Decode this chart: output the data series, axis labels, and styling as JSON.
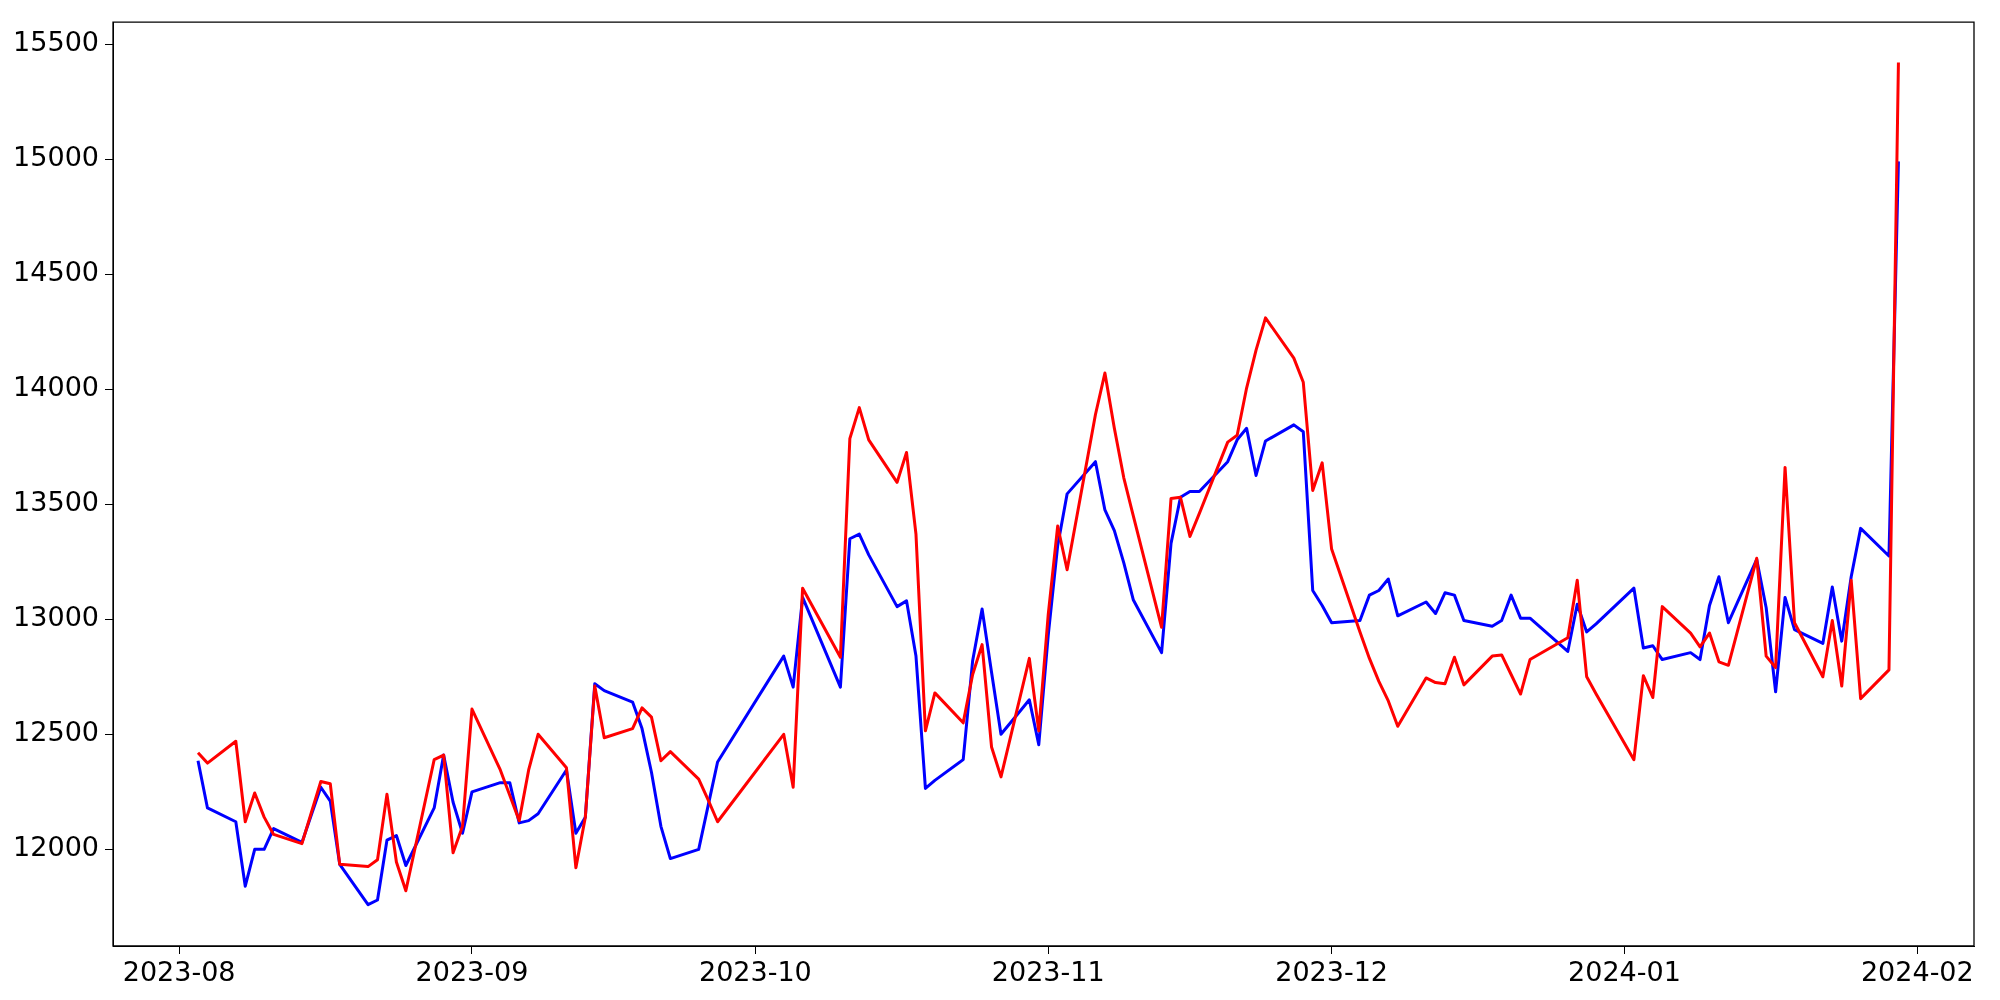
{
  "chart_data": {
    "type": "line",
    "x": [
      "2023-08-03",
      "2023-08-04",
      "2023-08-07",
      "2023-08-08",
      "2023-08-09",
      "2023-08-10",
      "2023-08-11",
      "2023-08-14",
      "2023-08-15",
      "2023-08-16",
      "2023-08-17",
      "2023-08-18",
      "2023-08-21",
      "2023-08-22",
      "2023-08-23",
      "2023-08-24",
      "2023-08-25",
      "2023-08-28",
      "2023-08-29",
      "2023-08-30",
      "2023-08-31",
      "2023-09-01",
      "2023-09-04",
      "2023-09-05",
      "2023-09-06",
      "2023-09-07",
      "2023-09-08",
      "2023-09-11",
      "2023-09-12",
      "2023-09-13",
      "2023-09-14",
      "2023-09-15",
      "2023-09-18",
      "2023-09-19",
      "2023-09-20",
      "2023-09-21",
      "2023-09-22",
      "2023-09-25",
      "2023-09-26",
      "2023-09-27",
      "2023-10-04",
      "2023-10-05",
      "2023-10-06",
      "2023-10-10",
      "2023-10-11",
      "2023-10-12",
      "2023-10-13",
      "2023-10-16",
      "2023-10-17",
      "2023-10-18",
      "2023-10-19",
      "2023-10-20",
      "2023-10-23",
      "2023-10-24",
      "2023-10-25",
      "2023-10-26",
      "2023-10-27",
      "2023-10-30",
      "2023-10-31",
      "2023-11-01",
      "2023-11-02",
      "2023-11-03",
      "2023-11-06",
      "2023-11-07",
      "2023-11-08",
      "2023-11-09",
      "2023-11-10",
      "2023-11-13",
      "2023-11-14",
      "2023-11-15",
      "2023-11-16",
      "2023-11-17",
      "2023-11-20",
      "2023-11-21",
      "2023-11-22",
      "2023-11-23",
      "2023-11-24",
      "2023-11-27",
      "2023-11-28",
      "2023-11-29",
      "2023-11-30",
      "2023-12-01",
      "2023-12-04",
      "2023-12-05",
      "2023-12-06",
      "2023-12-07",
      "2023-12-08",
      "2023-12-11",
      "2023-12-12",
      "2023-12-13",
      "2023-12-14",
      "2023-12-15",
      "2023-12-18",
      "2023-12-19",
      "2023-12-20",
      "2023-12-21",
      "2023-12-22",
      "2023-12-26",
      "2023-12-27",
      "2023-12-28",
      "2023-12-29",
      "2024-01-02",
      "2024-01-03",
      "2024-01-04",
      "2024-01-05",
      "2024-01-08",
      "2024-01-09",
      "2024-01-10",
      "2024-01-11",
      "2024-01-12",
      "2024-01-15",
      "2024-01-16",
      "2024-01-17",
      "2024-01-18",
      "2024-01-19",
      "2024-01-22",
      "2024-01-23",
      "2024-01-24",
      "2024-01-25",
      "2024-01-26",
      "2024-01-29",
      "2024-01-30"
    ],
    "series": [
      {
        "color": "#ff0000",
        "values": [
          12420,
          12375,
          12470,
          12120,
          12245,
          12140,
          12065,
          12025,
          12160,
          12295,
          12285,
          11935,
          11925,
          11955,
          12240,
          11945,
          11820,
          12390,
          12410,
          11985,
          12100,
          12610,
          12345,
          12235,
          12125,
          12345,
          12500,
          12355,
          11920,
          12140,
          12710,
          12485,
          12525,
          12615,
          12575,
          12385,
          12425,
          12305,
          12215,
          12120,
          12500,
          12270,
          13135,
          12835,
          13785,
          13920,
          13780,
          13595,
          13725,
          13370,
          12515,
          12680,
          12550,
          12760,
          12890,
          12445,
          12315,
          12830,
          12515,
          13020,
          13405,
          13215,
          13890,
          14070,
          13830,
          13615,
          13450,
          12965,
          13525,
          13530,
          13360,
          13460,
          13770,
          13800,
          14005,
          14170,
          14310,
          14135,
          14030,
          13560,
          13680,
          13305,
          12945,
          12830,
          12730,
          12645,
          12535,
          12745,
          12725,
          12720,
          12835,
          12715,
          12840,
          12845,
          12760,
          12675,
          12825,
          12920,
          13170,
          12750,
          12675,
          12390,
          12755,
          12660,
          13055,
          12940,
          12880,
          12940,
          12815,
          12800,
          13265,
          12840,
          12790,
          13660,
          12985,
          12750,
          12995,
          12710,
          13170,
          12655,
          12780,
          15420
        ]
      },
      {
        "color": "#0000ff",
        "values": [
          12385,
          12180,
          12120,
          11840,
          12000,
          12000,
          12090,
          12030,
          12150,
          12270,
          12210,
          11935,
          11760,
          11780,
          12040,
          12060,
          11930,
          12180,
          12410,
          12205,
          12070,
          12250,
          12290,
          12290,
          12115,
          12125,
          12155,
          12345,
          12070,
          12140,
          12720,
          12690,
          12640,
          12525,
          12335,
          12100,
          11960,
          12000,
          12190,
          12380,
          12840,
          12705,
          13095,
          12705,
          13350,
          13370,
          13280,
          13055,
          13080,
          12840,
          12265,
          12300,
          12390,
          12820,
          13045,
          12770,
          12500,
          12650,
          12455,
          12930,
          13320,
          13545,
          13685,
          13475,
          13385,
          13245,
          13085,
          12855,
          13330,
          13530,
          13555,
          13555,
          13685,
          13780,
          13830,
          13625,
          13775,
          13845,
          13815,
          13125,
          13060,
          12985,
          12995,
          13105,
          13125,
          13175,
          13015,
          13075,
          13025,
          13115,
          13105,
          12995,
          12970,
          12995,
          13105,
          13005,
          13005,
          12860,
          13065,
          12945,
          12980,
          13135,
          12875,
          12885,
          12825,
          12855,
          12825,
          13060,
          13185,
          12985,
          13260,
          13050,
          12685,
          13095,
          12955,
          12895,
          13140,
          12905,
          13185,
          13395,
          13275,
          14990
        ]
      }
    ],
    "xlim": [
      "2023-07-25",
      "2024-02-07"
    ],
    "xticks": [
      {
        "value": "2023-08-01",
        "label": "2023-08"
      },
      {
        "value": "2023-09-01",
        "label": "2023-09"
      },
      {
        "value": "2023-10-01",
        "label": "2023-10"
      },
      {
        "value": "2023-11-01",
        "label": "2023-11"
      },
      {
        "value": "2023-12-01",
        "label": "2023-12"
      },
      {
        "value": "2024-01-01",
        "label": "2024-01"
      },
      {
        "value": "2024-02-01",
        "label": "2024-02"
      }
    ],
    "ylim": [
      11580,
      15595
    ],
    "yticks": [
      12000,
      12500,
      13000,
      13500,
      14000,
      14500,
      15000,
      15500
    ],
    "marker": "none",
    "line_style": "solid",
    "grid": false,
    "legend": false
  }
}
